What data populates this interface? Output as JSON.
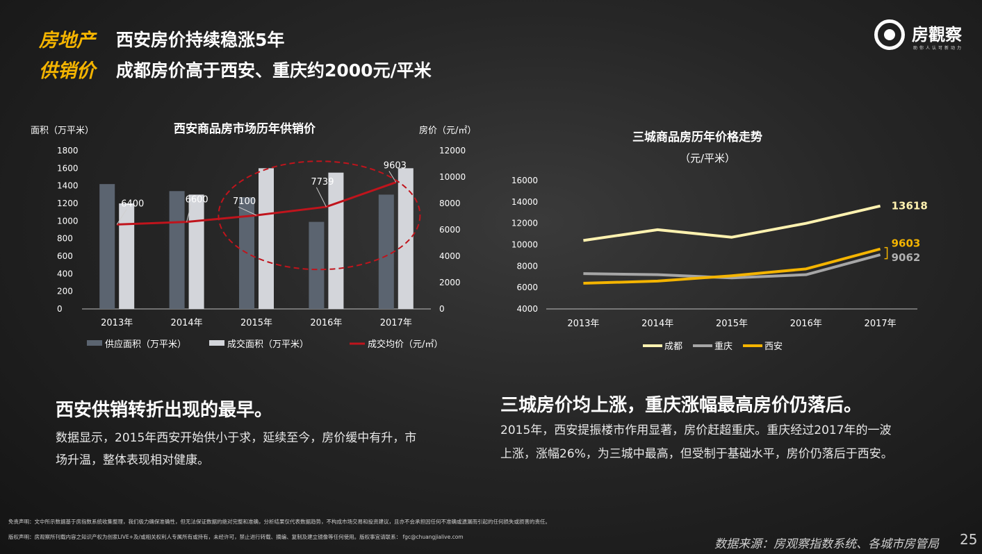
{
  "header": {
    "category1": "房地产",
    "category2": "供销价",
    "title1": "西安房价持续稳涨5年",
    "title2": "成都房价高于西安、重庆约2000元/平米"
  },
  "logo": {
    "name": "房觀察",
    "tagline": "助你人认可新动力"
  },
  "chart_data": [
    {
      "type": "bar",
      "title": "西安商品房市场历年供销价",
      "ylabel_left": "面积（万平米）",
      "ylabel_right": "房价（元/㎡）",
      "categories": [
        "2013年",
        "2014年",
        "2015年",
        "2016年",
        "2017年"
      ],
      "ylim_left": [
        0,
        1800
      ],
      "yticks_left": [
        0,
        200,
        400,
        600,
        800,
        1000,
        1200,
        1400,
        1600,
        1800
      ],
      "ylim_right": [
        0,
        12000
      ],
      "yticks_right": [
        0,
        2000,
        4000,
        6000,
        8000,
        10000,
        12000
      ],
      "series": [
        {
          "name": "供应面积（万平米）",
          "type": "bar",
          "axis": "left",
          "color": "#5b6470",
          "values": [
            1420,
            1340,
            1270,
            990,
            1300
          ]
        },
        {
          "name": "成交面积（万平米）",
          "type": "bar",
          "axis": "left",
          "color": "#d3d5da",
          "values": [
            1200,
            1300,
            1600,
            1550,
            1600
          ]
        },
        {
          "name": "成交均价（元/㎡）",
          "type": "line",
          "axis": "right",
          "color": "#c0141c",
          "values": [
            6400,
            6600,
            7100,
            7739,
            9603
          ]
        }
      ],
      "data_labels": [
        "6400",
        "6600",
        "7100",
        "7739",
        "9603"
      ],
      "legend": "bottom"
    },
    {
      "type": "line",
      "title": "三城商品房历年价格走势",
      "subtitle": "（元/平米）",
      "categories": [
        "2013年",
        "2014年",
        "2015年",
        "2016年",
        "2017年"
      ],
      "ylim": [
        4000,
        16000
      ],
      "yticks": [
        4000,
        6000,
        8000,
        10000,
        12000,
        14000,
        16000
      ],
      "series": [
        {
          "name": "成都",
          "color": "#fff2b0",
          "values": [
            10400,
            11400,
            10700,
            12000,
            13618
          ]
        },
        {
          "name": "重庆",
          "color": "#a6a6a6",
          "values": [
            7300,
            7200,
            6900,
            7200,
            9062
          ]
        },
        {
          "name": "西安",
          "color": "#f4b400",
          "values": [
            6400,
            6600,
            7100,
            7739,
            9603
          ]
        }
      ],
      "end_labels": [
        {
          "text": "13618",
          "color": "#fff2b0"
        },
        {
          "text": "9603",
          "color": "#f4b400"
        },
        {
          "text": "9062",
          "color": "#b0b0b0"
        }
      ],
      "legend": "bottom"
    }
  ],
  "left_section": {
    "title": "西安供销转折出现的最早。",
    "line1": "数据显示，2015年西安开始供小于求，延续至今，房价缓中有升，市",
    "line2": "场升温，整体表现相对健康。"
  },
  "right_section": {
    "title": "三城房价均上涨，重庆涨幅最高房价仍落后。",
    "line1": "2015年，西安提振楼市作用显著，房价赶超重庆。重庆经过2017年的一波",
    "line2": "上涨，涨幅26%，为三城中最高，但受制于基础水平，房价仍落后于西安。"
  },
  "footer": {
    "disclaimer1": "免责声明：文中所示数据基于房指数系统收集整理，我们极力确保准确性，但无法保证数据的绝对完整和准确，分析结果仅代表数据趋势，不构成市场交易和投资建议，且亦不会承担因任何不准确或遗漏而引起的任何损失或损害的责任。",
    "disclaimer2": "版权声明：房观察所刊载内容之知识产权为创家LIVE+及/或相关权利人专属所有或持有，未经许可，禁止进行转载、摘编、复制及建立镜像等任何使用。版权事宜请联系： fgc@chuangjialive.com",
    "source": "数据来源：房观察指数系统、各城市房管局",
    "page": "25"
  }
}
